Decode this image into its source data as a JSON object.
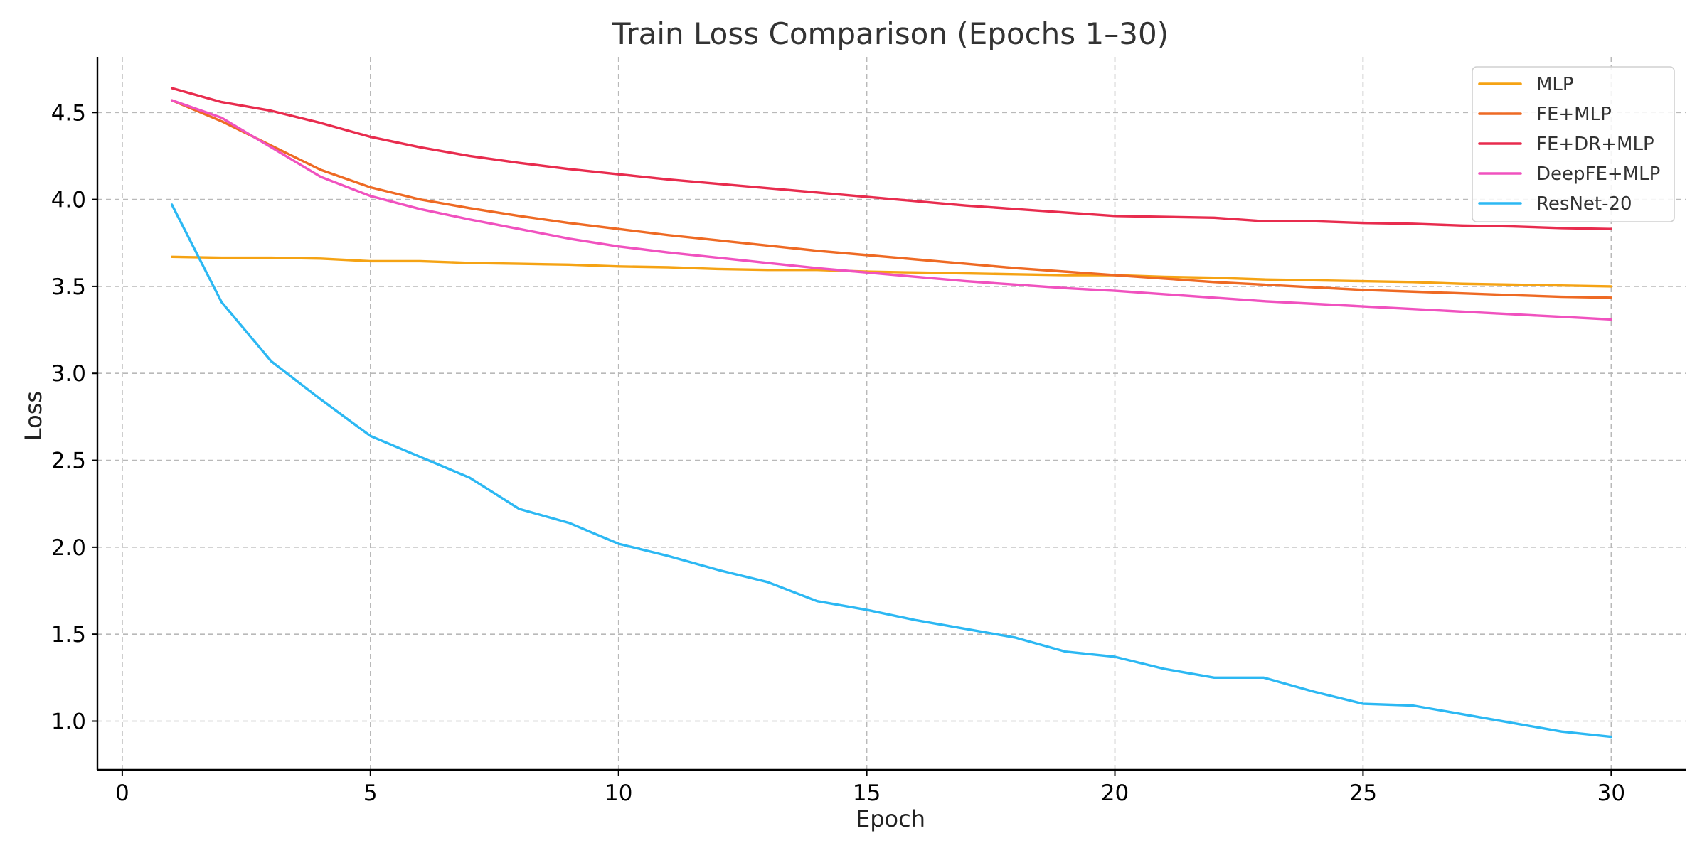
{
  "chart_data": {
    "type": "line",
    "title": "Train Loss Comparison (Epochs 1–30)",
    "xlabel": "Epoch",
    "ylabel": "Loss",
    "xlim": [
      -0.5,
      31.5
    ],
    "ylim": [
      0.72,
      4.82
    ],
    "xticks": [
      0,
      5,
      10,
      15,
      20,
      25,
      30
    ],
    "yticks": [
      1.0,
      1.5,
      2.0,
      2.5,
      3.0,
      3.5,
      4.0,
      4.5
    ],
    "tick_decimals_y": 1,
    "grid": true,
    "legend_position": "top-right",
    "x": [
      1,
      2,
      3,
      4,
      5,
      6,
      7,
      8,
      9,
      10,
      11,
      12,
      13,
      14,
      15,
      16,
      17,
      18,
      19,
      20,
      21,
      22,
      23,
      24,
      25,
      26,
      27,
      28,
      29,
      30
    ],
    "series": [
      {
        "name": "MLP",
        "color": "#f5a314",
        "values": [
          3.67,
          3.665,
          3.665,
          3.66,
          3.645,
          3.645,
          3.635,
          3.63,
          3.625,
          3.615,
          3.61,
          3.6,
          3.595,
          3.595,
          3.585,
          3.58,
          3.575,
          3.57,
          3.565,
          3.565,
          3.555,
          3.55,
          3.54,
          3.535,
          3.53,
          3.525,
          3.515,
          3.51,
          3.505,
          3.5
        ]
      },
      {
        "name": "FE+MLP",
        "color": "#ee6a24",
        "values": [
          4.57,
          4.45,
          4.31,
          4.17,
          4.07,
          4.0,
          3.95,
          3.905,
          3.865,
          3.83,
          3.795,
          3.765,
          3.735,
          3.705,
          3.68,
          3.655,
          3.63,
          3.605,
          3.585,
          3.565,
          3.545,
          3.525,
          3.51,
          3.495,
          3.48,
          3.47,
          3.46,
          3.45,
          3.44,
          3.435
        ]
      },
      {
        "name": "FE+DR+MLP",
        "color": "#e82c4e",
        "values": [
          4.64,
          4.56,
          4.51,
          4.44,
          4.36,
          4.3,
          4.25,
          4.21,
          4.175,
          4.145,
          4.115,
          4.09,
          4.065,
          4.04,
          4.015,
          3.99,
          3.965,
          3.945,
          3.925,
          3.905,
          3.9,
          3.895,
          3.875,
          3.875,
          3.865,
          3.86,
          3.85,
          3.845,
          3.835,
          3.83
        ]
      },
      {
        "name": "DeepFE+MLP",
        "color": "#f052bf",
        "values": [
          4.57,
          4.47,
          4.3,
          4.13,
          4.02,
          3.945,
          3.885,
          3.83,
          3.775,
          3.73,
          3.695,
          3.665,
          3.635,
          3.605,
          3.58,
          3.555,
          3.53,
          3.51,
          3.49,
          3.475,
          3.455,
          3.435,
          3.415,
          3.4,
          3.385,
          3.37,
          3.355,
          3.34,
          3.325,
          3.31
        ]
      },
      {
        "name": "ResNet-20",
        "color": "#2cb8f3",
        "values": [
          3.97,
          3.41,
          3.07,
          2.85,
          2.64,
          2.52,
          2.4,
          2.22,
          2.14,
          2.02,
          1.95,
          1.87,
          1.8,
          1.69,
          1.64,
          1.58,
          1.53,
          1.48,
          1.4,
          1.37,
          1.3,
          1.25,
          1.25,
          1.17,
          1.1,
          1.09,
          1.04,
          0.99,
          0.94,
          0.91
        ]
      }
    ]
  }
}
